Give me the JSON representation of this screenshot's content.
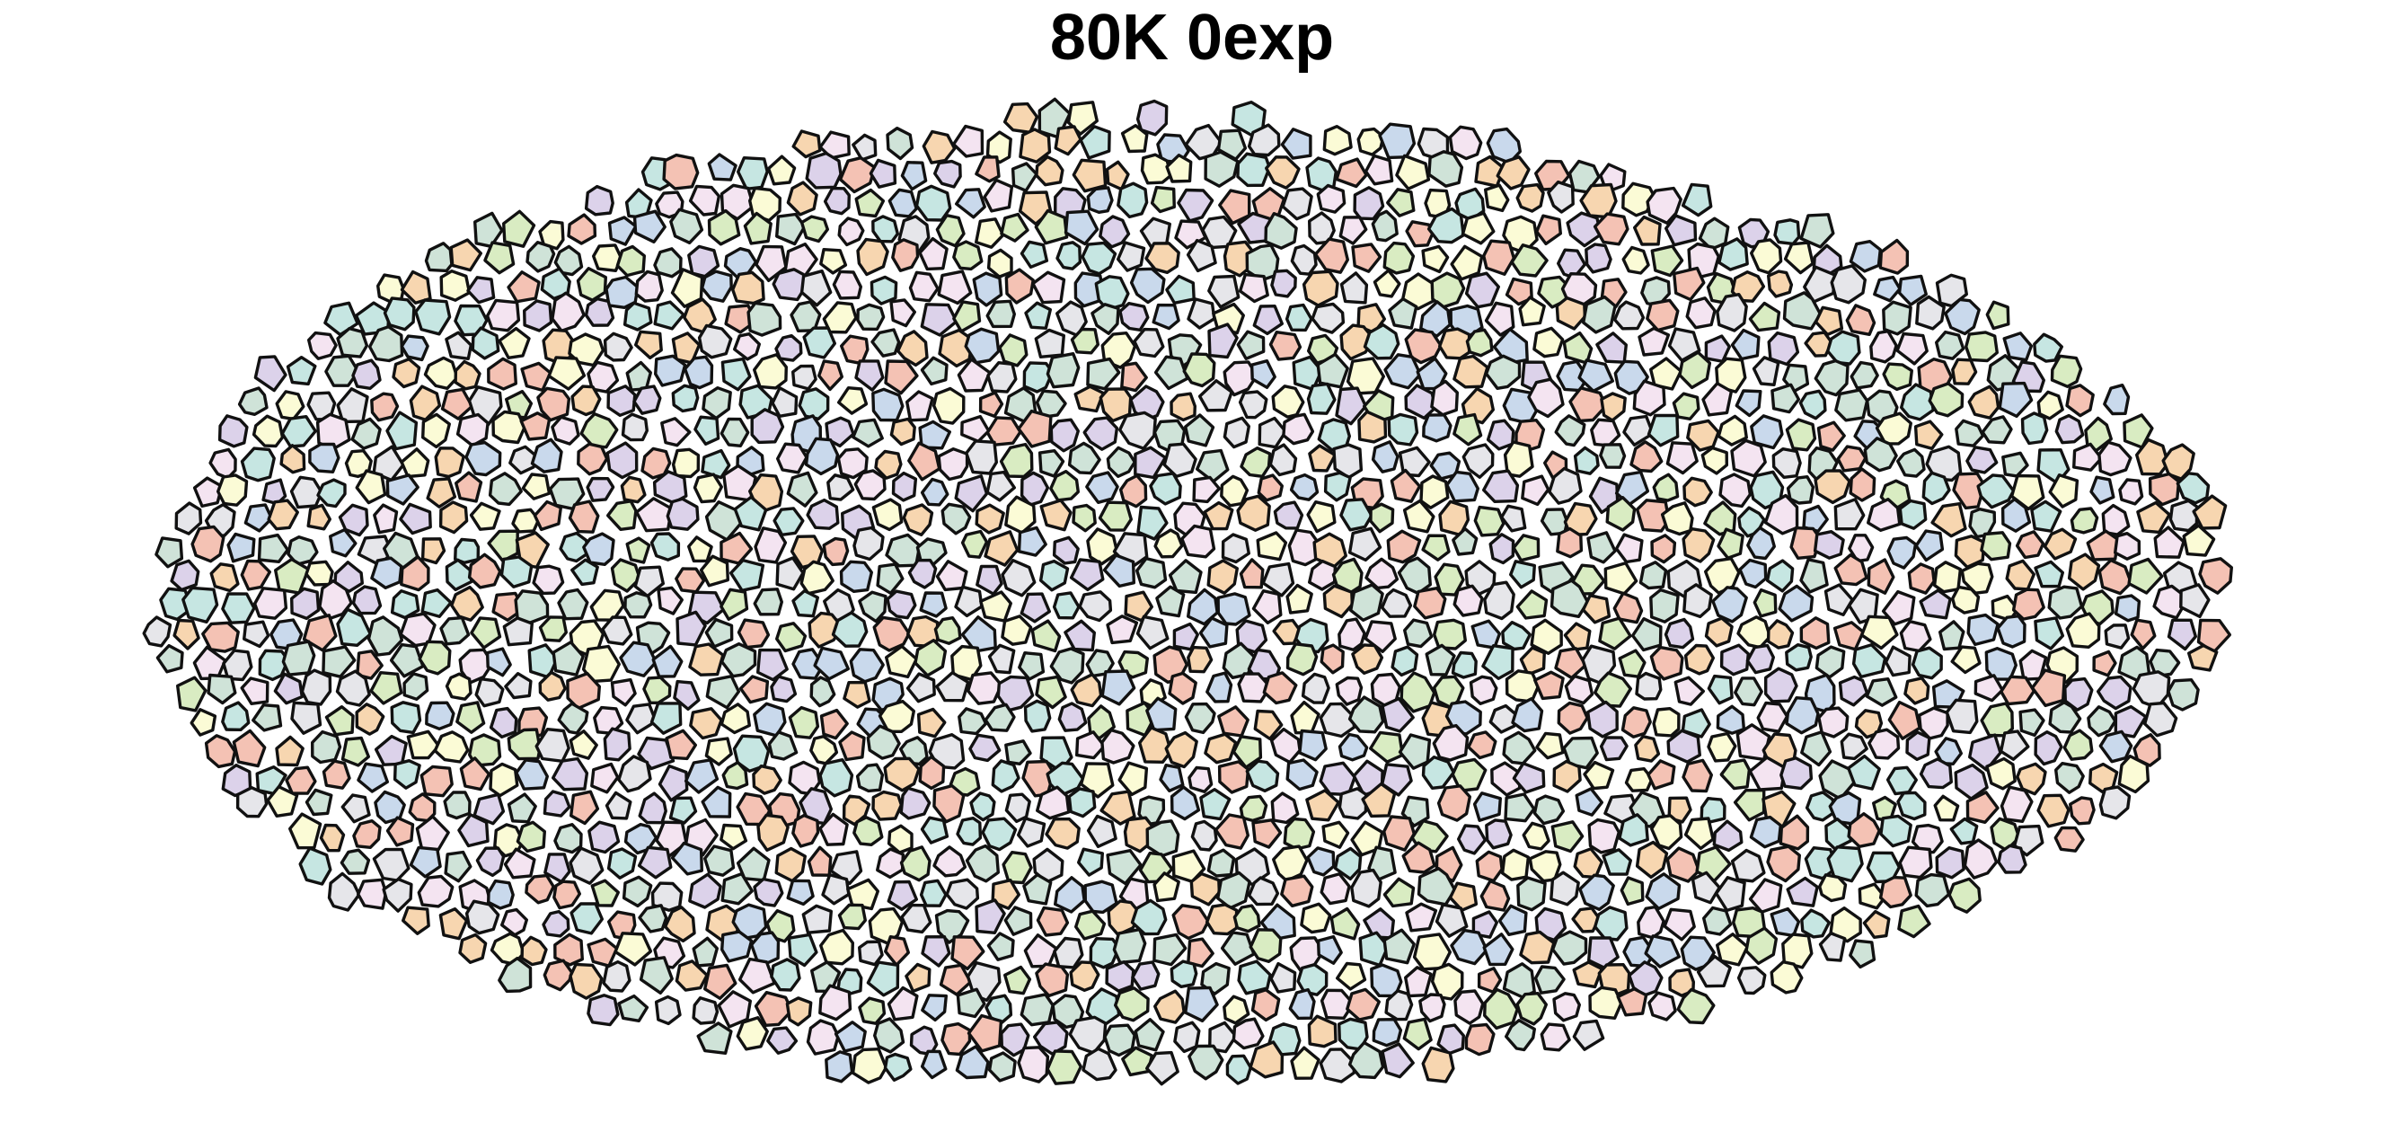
{
  "title": "80K 0exp",
  "cell_palette": [
    "#f4c2b4",
    "#f7d6b0",
    "#fbfbd6",
    "#d9ecc2",
    "#c6e6e2",
    "#c9d9ec",
    "#dcd2ea",
    "#f4e4f1",
    "#e6e6ea",
    "#cfe3d8"
  ],
  "cell_outline_color": "#111111",
  "background_color": "#ffffff"
}
